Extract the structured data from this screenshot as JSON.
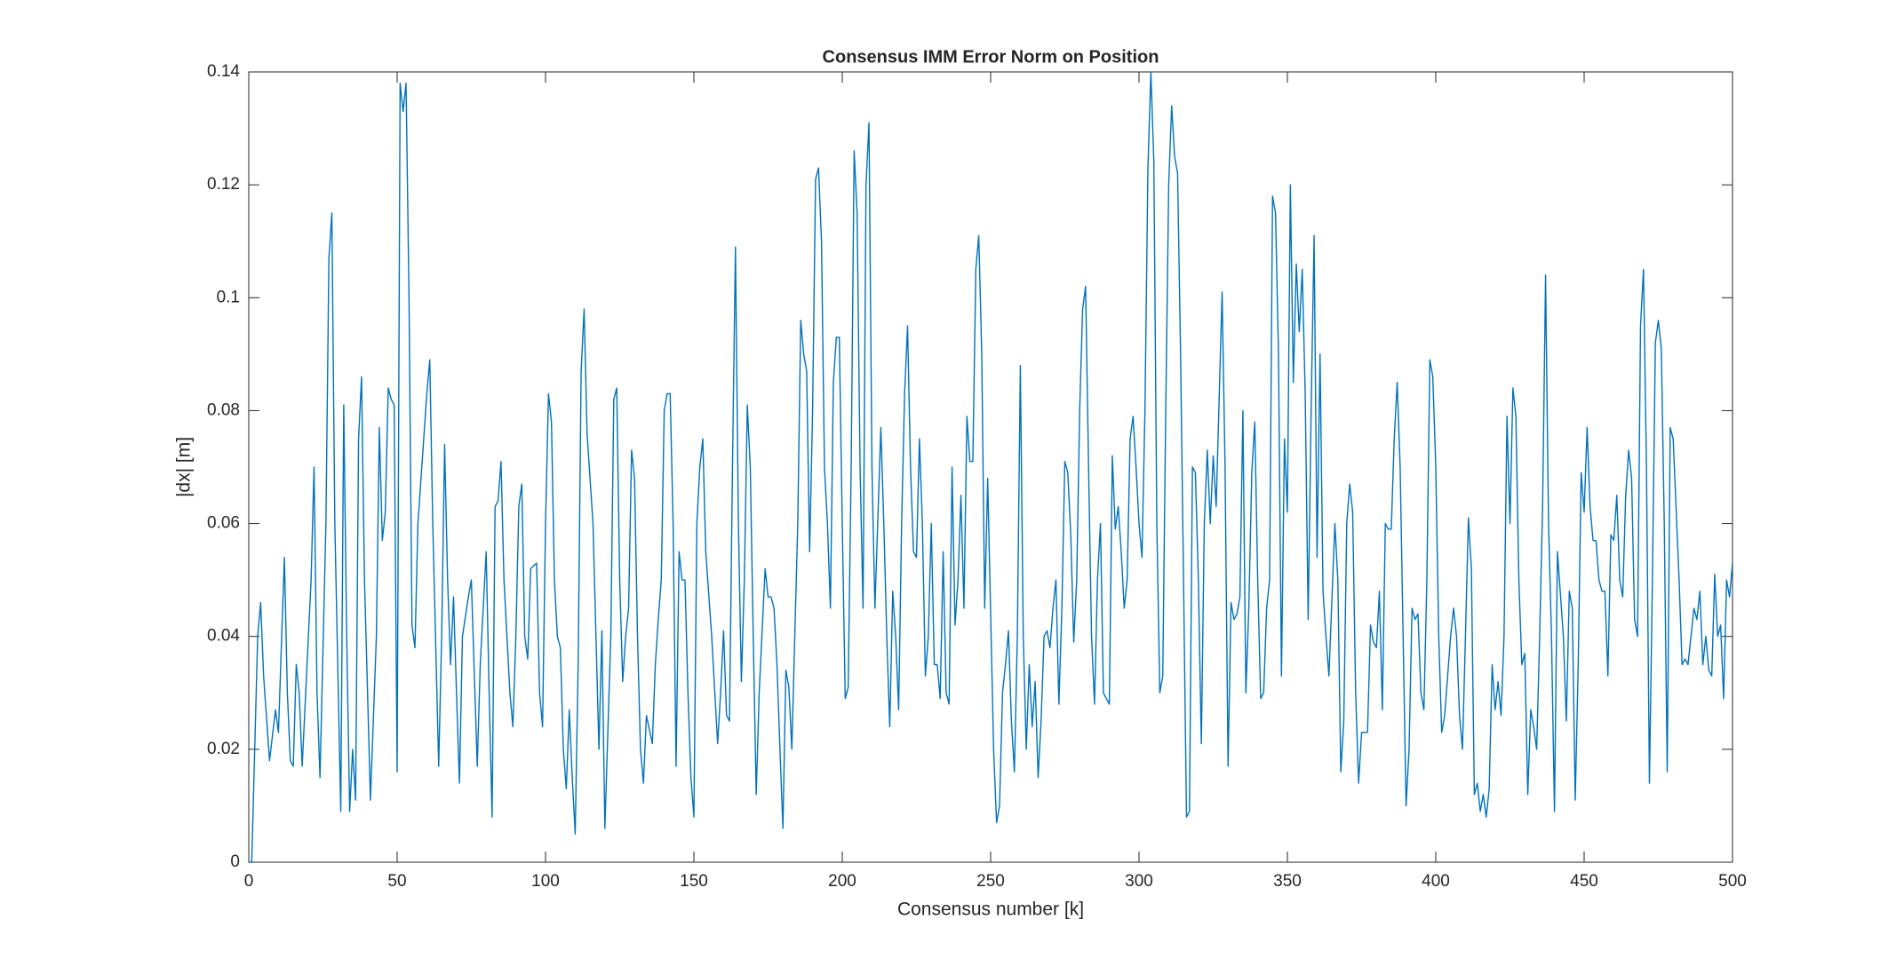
{
  "chart_data": {
    "type": "line",
    "title": "Consensus IMM Error Norm on Position",
    "xlabel": "Consensus number [k]",
    "ylabel": "|dx| [m]",
    "x": [
      0,
      1,
      2,
      3,
      4,
      5,
      7,
      9,
      10,
      12,
      13,
      14,
      15,
      16,
      17,
      18,
      21,
      22,
      23,
      24,
      26,
      27,
      28,
      29,
      31,
      32,
      33,
      34,
      35,
      36,
      37,
      38,
      39,
      41,
      43,
      44,
      45,
      46,
      47,
      48,
      49,
      50,
      51,
      52,
      53,
      54,
      55,
      56,
      57,
      60,
      61,
      62,
      64,
      65,
      66,
      67,
      68,
      69,
      70,
      71,
      72,
      74,
      75,
      77,
      78,
      80,
      81,
      82,
      83,
      84,
      85,
      86,
      88,
      89,
      90,
      91,
      92,
      93,
      94,
      95,
      97,
      98,
      99,
      100,
      101,
      102,
      103,
      104,
      105,
      106,
      107,
      108,
      109,
      110,
      111,
      112,
      113,
      114,
      116,
      117,
      118,
      119,
      120,
      122,
      123,
      124,
      125,
      126,
      127,
      128,
      129,
      130,
      131,
      132,
      133,
      134,
      136,
      137,
      138,
      139,
      140,
      141,
      142,
      143,
      144,
      145,
      146,
      147,
      148,
      149,
      150,
      151,
      152,
      153,
      154,
      156,
      158,
      159,
      160,
      161,
      162,
      163,
      164,
      165,
      166,
      167,
      168,
      169,
      170,
      171,
      172,
      174,
      175,
      176,
      177,
      178,
      179,
      180,
      181,
      182,
      183,
      185,
      186,
      187,
      188,
      189,
      190,
      191,
      192,
      193,
      194,
      195,
      196,
      197,
      198,
      199,
      200,
      201,
      202,
      203,
      204,
      205,
      206,
      207,
      208,
      209,
      210,
      211,
      213,
      214,
      215,
      216,
      217,
      218,
      219,
      220,
      221,
      222,
      223,
      224,
      225,
      226,
      227,
      228,
      229,
      230,
      231,
      232,
      233,
      234,
      235,
      236,
      237,
      238,
      239,
      240,
      241,
      242,
      243,
      244,
      245,
      246,
      247,
      248,
      249,
      251,
      252,
      253,
      254,
      255,
      256,
      257,
      258,
      259,
      260,
      261,
      262,
      263,
      264,
      265,
      266,
      267,
      268,
      269,
      270,
      271,
      272,
      273,
      274,
      275,
      276,
      277,
      278,
      279,
      280,
      281,
      282,
      283,
      284,
      285,
      286,
      287,
      288,
      290,
      291,
      292,
      293,
      294,
      295,
      296,
      297,
      298,
      299,
      300,
      301,
      302,
      303,
      304,
      305,
      306,
      307,
      308,
      309,
      310,
      311,
      312,
      313,
      314,
      315,
      316,
      317,
      318,
      319,
      320,
      321,
      322,
      323,
      324,
      325,
      326,
      328,
      329,
      330,
      331,
      332,
      333,
      334,
      335,
      336,
      337,
      338,
      339,
      340,
      341,
      342,
      343,
      344,
      345,
      346,
      347,
      348,
      349,
      350,
      351,
      352,
      353,
      354,
      355,
      356,
      357,
      358,
      359,
      360,
      361,
      362,
      363,
      364,
      366,
      367,
      368,
      369,
      370,
      371,
      372,
      373,
      374,
      375,
      376,
      377,
      378,
      379,
      380,
      381,
      382,
      383,
      384,
      385,
      386,
      387,
      388,
      389,
      390,
      391,
      392,
      393,
      394,
      395,
      396,
      397,
      398,
      399,
      400,
      401,
      402,
      403,
      405,
      406,
      407,
      408,
      409,
      410,
      411,
      412,
      413,
      414,
      415,
      416,
      417,
      418,
      419,
      420,
      421,
      422,
      423,
      424,
      425,
      426,
      427,
      428,
      429,
      430,
      431,
      432,
      433,
      434,
      435,
      436,
      437,
      438,
      439,
      440,
      441,
      443,
      444,
      445,
      446,
      447,
      448,
      449,
      450,
      451,
      452,
      453,
      454,
      455,
      456,
      457,
      458,
      459,
      460,
      461,
      462,
      463,
      464,
      465,
      466,
      467,
      468,
      469,
      470,
      471,
      472,
      473,
      474,
      475,
      476,
      477,
      478,
      479,
      480,
      482,
      483,
      484,
      485,
      486,
      487,
      488,
      489,
      490,
      491,
      492,
      493,
      494,
      495,
      496,
      497,
      498,
      499,
      500
    ],
    "series": [
      {
        "color": "#0072BD",
        "values": [
          0,
          0,
          0.02,
          0.04,
          0.046,
          0.033,
          0.018,
          0.027,
          0.023,
          0.054,
          0.03,
          0.018,
          0.017,
          0.035,
          0.03,
          0.017,
          0.05,
          0.07,
          0.03,
          0.015,
          0.06,
          0.107,
          0.115,
          0.06,
          0.009,
          0.081,
          0.04,
          0.009,
          0.02,
          0.011,
          0.075,
          0.086,
          0.05,
          0.011,
          0.04,
          0.077,
          0.057,
          0.062,
          0.084,
          0.082,
          0.081,
          0.016,
          0.138,
          0.133,
          0.138,
          0.1,
          0.042,
          0.038,
          0.06,
          0.083,
          0.089,
          0.06,
          0.017,
          0.04,
          0.074,
          0.05,
          0.035,
          0.047,
          0.03,
          0.014,
          0.04,
          0.047,
          0.05,
          0.017,
          0.035,
          0.055,
          0.03,
          0.008,
          0.063,
          0.064,
          0.071,
          0.05,
          0.03,
          0.024,
          0.04,
          0.063,
          0.067,
          0.04,
          0.036,
          0.052,
          0.053,
          0.03,
          0.024,
          0.06,
          0.083,
          0.078,
          0.05,
          0.04,
          0.038,
          0.02,
          0.013,
          0.027,
          0.015,
          0.005,
          0.035,
          0.087,
          0.098,
          0.076,
          0.06,
          0.04,
          0.02,
          0.041,
          0.006,
          0.04,
          0.082,
          0.084,
          0.05,
          0.032,
          0.04,
          0.045,
          0.073,
          0.068,
          0.04,
          0.02,
          0.014,
          0.026,
          0.021,
          0.035,
          0.043,
          0.05,
          0.08,
          0.083,
          0.083,
          0.06,
          0.017,
          0.055,
          0.05,
          0.05,
          0.03,
          0.015,
          0.008,
          0.06,
          0.07,
          0.075,
          0.055,
          0.04,
          0.021,
          0.03,
          0.041,
          0.026,
          0.025,
          0.07,
          0.109,
          0.06,
          0.032,
          0.05,
          0.081,
          0.07,
          0.04,
          0.012,
          0.03,
          0.052,
          0.047,
          0.047,
          0.045,
          0.035,
          0.02,
          0.006,
          0.034,
          0.031,
          0.02,
          0.06,
          0.096,
          0.09,
          0.087,
          0.055,
          0.08,
          0.121,
          0.123,
          0.11,
          0.07,
          0.06,
          0.045,
          0.085,
          0.093,
          0.093,
          0.06,
          0.029,
          0.031,
          0.07,
          0.126,
          0.115,
          0.07,
          0.045,
          0.12,
          0.131,
          0.07,
          0.045,
          0.077,
          0.06,
          0.04,
          0.024,
          0.048,
          0.04,
          0.027,
          0.06,
          0.083,
          0.095,
          0.07,
          0.055,
          0.054,
          0.075,
          0.06,
          0.033,
          0.04,
          0.06,
          0.035,
          0.035,
          0.029,
          0.055,
          0.03,
          0.028,
          0.07,
          0.042,
          0.05,
          0.065,
          0.045,
          0.079,
          0.071,
          0.071,
          0.105,
          0.111,
          0.09,
          0.045,
          0.068,
          0.02,
          0.007,
          0.01,
          0.03,
          0.035,
          0.041,
          0.025,
          0.016,
          0.04,
          0.088,
          0.04,
          0.02,
          0.035,
          0.024,
          0.032,
          0.015,
          0.025,
          0.04,
          0.041,
          0.038,
          0.045,
          0.05,
          0.028,
          0.045,
          0.071,
          0.069,
          0.058,
          0.039,
          0.05,
          0.08,
          0.098,
          0.102,
          0.07,
          0.04,
          0.028,
          0.05,
          0.06,
          0.03,
          0.028,
          0.072,
          0.059,
          0.063,
          0.055,
          0.045,
          0.05,
          0.075,
          0.079,
          0.07,
          0.06,
          0.054,
          0.08,
          0.123,
          0.14,
          0.124,
          0.06,
          0.03,
          0.033,
          0.08,
          0.12,
          0.134,
          0.125,
          0.122,
          0.09,
          0.05,
          0.008,
          0.009,
          0.07,
          0.069,
          0.05,
          0.021,
          0.06,
          0.073,
          0.06,
          0.072,
          0.063,
          0.101,
          0.07,
          0.017,
          0.046,
          0.043,
          0.044,
          0.047,
          0.08,
          0.03,
          0.045,
          0.069,
          0.078,
          0.05,
          0.029,
          0.03,
          0.045,
          0.05,
          0.118,
          0.115,
          0.09,
          0.033,
          0.075,
          0.062,
          0.12,
          0.085,
          0.106,
          0.094,
          0.105,
          0.083,
          0.043,
          0.08,
          0.111,
          0.054,
          0.09,
          0.048,
          0.04,
          0.033,
          0.06,
          0.05,
          0.016,
          0.025,
          0.06,
          0.067,
          0.062,
          0.03,
          0.014,
          0.023,
          0.023,
          0.023,
          0.042,
          0.039,
          0.038,
          0.048,
          0.027,
          0.06,
          0.059,
          0.059,
          0.075,
          0.085,
          0.07,
          0.04,
          0.01,
          0.02,
          0.045,
          0.043,
          0.044,
          0.03,
          0.027,
          0.05,
          0.089,
          0.086,
          0.07,
          0.04,
          0.023,
          0.026,
          0.04,
          0.045,
          0.04,
          0.026,
          0.02,
          0.04,
          0.061,
          0.052,
          0.012,
          0.014,
          0.009,
          0.012,
          0.008,
          0.013,
          0.035,
          0.027,
          0.032,
          0.026,
          0.04,
          0.079,
          0.06,
          0.084,
          0.079,
          0.05,
          0.035,
          0.037,
          0.012,
          0.027,
          0.024,
          0.02,
          0.04,
          0.063,
          0.104,
          0.06,
          0.04,
          0.009,
          0.055,
          0.04,
          0.025,
          0.048,
          0.045,
          0.011,
          0.035,
          0.069,
          0.062,
          0.077,
          0.063,
          0.057,
          0.057,
          0.05,
          0.048,
          0.048,
          0.033,
          0.058,
          0.057,
          0.065,
          0.05,
          0.047,
          0.065,
          0.073,
          0.068,
          0.043,
          0.04,
          0.095,
          0.105,
          0.07,
          0.014,
          0.05,
          0.092,
          0.096,
          0.091,
          0.06,
          0.016,
          0.077,
          0.075,
          0.05,
          0.035,
          0.036,
          0.035,
          0.04,
          0.045,
          0.043,
          0.048,
          0.035,
          0.04,
          0.034,
          0.033,
          0.051,
          0.04,
          0.042,
          0.029,
          0.05,
          0.047,
          0.053
        ]
      }
    ],
    "xlim": [
      0,
      500
    ],
    "xticks": [
      0,
      50,
      100,
      150,
      200,
      250,
      300,
      350,
      400,
      450,
      500
    ],
    "ylim": [
      0,
      0.14
    ],
    "yticks": [
      0,
      0.02,
      0.04,
      0.06,
      0.08,
      0.1,
      0.12,
      0.14
    ]
  }
}
